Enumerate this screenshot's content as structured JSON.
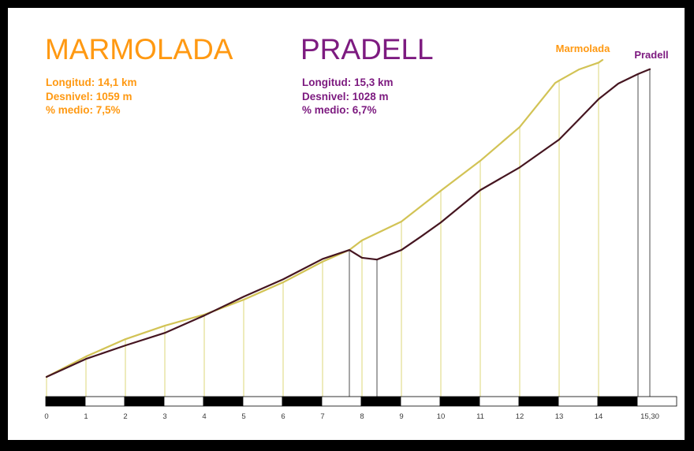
{
  "climbs": [
    {
      "id": "marmolada",
      "title": "MARMOLADA",
      "stats": [
        "Longitud: 14,1 km",
        "Desnivel: 1059 m",
        "% medio: 7,5%"
      ],
      "summit_label": "Marmolada",
      "color": "#ff9912",
      "line_color": "#d2c355",
      "dropline_color": "#e9e6ab"
    },
    {
      "id": "pradell",
      "title": "PRADELL",
      "stats": [
        "Longitud: 15,3 km",
        "Desnivel: 1028 m",
        "% medio: 6,7%"
      ],
      "summit_label": "Pradell",
      "color": "#7d1b80",
      "line_color": "#451520",
      "dropline_color": "#9c9c9c"
    }
  ],
  "chart_data": {
    "type": "line",
    "x_unit": "km",
    "y_unit": "m",
    "xlim": [
      0,
      16
    ],
    "ylim": [
      0,
      1059
    ],
    "grid": false,
    "legend_position": "summit-labels",
    "x_tick_labels": [
      "0",
      "1",
      "2",
      "3",
      "4",
      "5",
      "6",
      "7",
      "8",
      "9",
      "10",
      "11",
      "12",
      "13",
      "14",
      "15,30"
    ],
    "x_tick_km": [
      0,
      1,
      2,
      3,
      4,
      5,
      6,
      7,
      8,
      9,
      10,
      11,
      12,
      13,
      14,
      15.3
    ],
    "series": [
      {
        "name": "Marmolada",
        "length_km": 14.1,
        "gain_m": 1059,
        "avg_pct": 7.5,
        "points": [
          [
            0,
            0
          ],
          [
            1,
            68
          ],
          [
            2,
            126
          ],
          [
            3,
            171
          ],
          [
            4,
            208
          ],
          [
            5,
            258
          ],
          [
            6,
            316
          ],
          [
            7,
            385
          ],
          [
            7.68,
            424
          ],
          [
            8,
            456
          ],
          [
            9,
            519
          ],
          [
            10,
            622
          ],
          [
            11,
            722
          ],
          [
            12,
            835
          ],
          [
            12.9,
            982
          ],
          [
            13,
            990
          ],
          [
            13.5,
            1027
          ],
          [
            14,
            1050
          ],
          [
            14.1,
            1059
          ]
        ],
        "dropline_km": [
          0,
          1,
          2,
          3,
          4,
          5,
          6,
          7,
          8,
          9,
          10,
          11,
          12,
          13,
          14
        ]
      },
      {
        "name": "Pradell",
        "length_km": 15.3,
        "gain_m": 1028,
        "avg_pct": 6.7,
        "points": [
          [
            0,
            0
          ],
          [
            1,
            60
          ],
          [
            2,
            105
          ],
          [
            3,
            147
          ],
          [
            4,
            205
          ],
          [
            5,
            268
          ],
          [
            6,
            326
          ],
          [
            7,
            394
          ],
          [
            7.68,
            424
          ],
          [
            8,
            398
          ],
          [
            8.38,
            392
          ],
          [
            9,
            424
          ],
          [
            9.5,
            469
          ],
          [
            10,
            516
          ],
          [
            11,
            624
          ],
          [
            12,
            700
          ],
          [
            13,
            793
          ],
          [
            13.5,
            860
          ],
          [
            14,
            928
          ],
          [
            14.5,
            980
          ],
          [
            15,
            1012
          ],
          [
            15.3,
            1028
          ]
        ],
        "dropline_km": [
          7.68,
          8.38,
          15,
          15.3
        ]
      }
    ],
    "scale_bar": {
      "dark": "#000000",
      "light": "#ffffff"
    }
  }
}
